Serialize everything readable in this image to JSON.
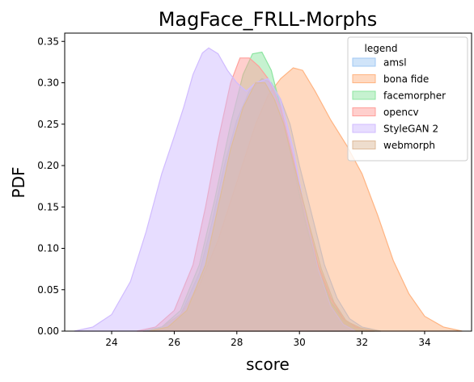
{
  "chart_data": {
    "type": "area",
    "title": "MagFace_FRLL-Morphs",
    "xlabel": "score",
    "ylabel": "PDF",
    "xlim": [
      22.5,
      35.5
    ],
    "ylim": [
      0,
      0.36
    ],
    "xticks": [
      24,
      26,
      28,
      30,
      32,
      34
    ],
    "yticks": [
      0.0,
      0.05,
      0.1,
      0.15,
      0.2,
      0.25,
      0.3,
      0.35
    ],
    "xtick_labels": [
      "24",
      "26",
      "28",
      "30",
      "32",
      "34"
    ],
    "ytick_labels": [
      "0.00",
      "0.05",
      "0.10",
      "0.15",
      "0.20",
      "0.25",
      "0.30",
      "0.35"
    ],
    "grid": false,
    "legend": {
      "title": "legend",
      "placement": "top-right"
    },
    "series": [
      {
        "name": "amsl",
        "fill": "#a1c9f4",
        "line": "#a1c9f4",
        "x": [
          25.0,
          25.6,
          26.2,
          26.8,
          27.2,
          27.6,
          28.0,
          28.4,
          28.8,
          29.1,
          29.4,
          29.7,
          30.0,
          30.4,
          30.8,
          31.2,
          31.6,
          32.0,
          32.6
        ],
        "y": [
          0.0,
          0.005,
          0.02,
          0.07,
          0.13,
          0.2,
          0.255,
          0.29,
          0.305,
          0.3,
          0.28,
          0.25,
          0.2,
          0.14,
          0.08,
          0.04,
          0.015,
          0.005,
          0.0
        ]
      },
      {
        "name": "bona fide",
        "fill": "#ffb482",
        "line": "#ffb482",
        "x": [
          25.0,
          25.6,
          26.2,
          26.8,
          27.4,
          28.0,
          28.6,
          29.0,
          29.4,
          29.8,
          30.1,
          30.5,
          31.0,
          31.5,
          32.0,
          32.5,
          33.0,
          33.5,
          34.0,
          34.6,
          35.2
        ],
        "y": [
          0.0,
          0.005,
          0.02,
          0.055,
          0.11,
          0.18,
          0.25,
          0.285,
          0.305,
          0.318,
          0.315,
          0.29,
          0.255,
          0.225,
          0.19,
          0.14,
          0.085,
          0.045,
          0.018,
          0.005,
          0.0
        ]
      },
      {
        "name": "facemorpher",
        "fill": "#8de5a1",
        "line": "#8de5a1",
        "x": [
          25.0,
          25.6,
          26.2,
          26.8,
          27.3,
          27.8,
          28.2,
          28.5,
          28.8,
          29.1,
          29.4,
          29.8,
          30.2,
          30.6,
          31.0,
          31.4,
          31.8,
          32.4
        ],
        "y": [
          0.0,
          0.005,
          0.025,
          0.08,
          0.16,
          0.25,
          0.31,
          0.335,
          0.337,
          0.315,
          0.27,
          0.2,
          0.13,
          0.075,
          0.035,
          0.015,
          0.005,
          0.0
        ]
      },
      {
        "name": "opencv",
        "fill": "#ff9f9b",
        "line": "#ff9f9b",
        "x": [
          24.8,
          25.4,
          26.0,
          26.6,
          27.0,
          27.4,
          27.8,
          28.1,
          28.4,
          28.7,
          29.0,
          29.4,
          29.8,
          30.2,
          30.6,
          31.0,
          31.4,
          31.8,
          32.4
        ],
        "y": [
          0.0,
          0.005,
          0.025,
          0.08,
          0.15,
          0.23,
          0.3,
          0.33,
          0.33,
          0.32,
          0.305,
          0.27,
          0.21,
          0.14,
          0.08,
          0.04,
          0.015,
          0.005,
          0.0
        ]
      },
      {
        "name": "StyleGAN 2",
        "fill": "#d0bbff",
        "line": "#d0bbff",
        "x": [
          22.8,
          23.4,
          24.0,
          24.6,
          25.1,
          25.6,
          26.0,
          26.3,
          26.6,
          26.9,
          27.1,
          27.4,
          27.7,
          28.0,
          28.3,
          28.6,
          29.0,
          29.4,
          29.8,
          30.2,
          30.6,
          31.0,
          31.4,
          31.8
        ],
        "y": [
          0.0,
          0.005,
          0.02,
          0.06,
          0.12,
          0.19,
          0.235,
          0.27,
          0.31,
          0.336,
          0.342,
          0.335,
          0.315,
          0.3,
          0.29,
          0.3,
          0.305,
          0.28,
          0.22,
          0.14,
          0.075,
          0.03,
          0.008,
          0.0
        ]
      },
      {
        "name": "webmorph",
        "fill": "#debb9b",
        "line": "#debb9b",
        "x": [
          25.2,
          25.8,
          26.4,
          27.0,
          27.4,
          27.8,
          28.2,
          28.6,
          28.9,
          29.2,
          29.5,
          29.9,
          30.3,
          30.7,
          31.1,
          31.5,
          32.0,
          32.6
        ],
        "y": [
          0.0,
          0.005,
          0.025,
          0.08,
          0.15,
          0.22,
          0.27,
          0.3,
          0.3,
          0.28,
          0.25,
          0.19,
          0.13,
          0.075,
          0.035,
          0.012,
          0.003,
          0.0
        ]
      }
    ]
  }
}
